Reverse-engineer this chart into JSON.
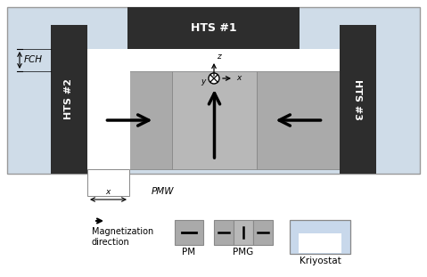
{
  "bg_color": "#cfdce8",
  "hts_dark": "#2d2d2d",
  "pmg_gray": "#aaaaaa",
  "pmg_mid": "#b8b8b8",
  "kriyostat_blue": "#c8d8eb",
  "white": "#ffffff",
  "fig_bg": "#ffffff",
  "title_hts1": "HTS #1",
  "title_hts2": "HTS #2",
  "title_hts3": "HTS #3",
  "label_fch": "FCH",
  "label_pmw": "PMW",
  "label_x_small": "x",
  "label_z": "z",
  "label_y": "y",
  "label_x": "x",
  "legend_mag": "Magnetization\ndirection",
  "legend_pm": "PM",
  "legend_pmg": "PMG",
  "legend_kriyostat": "Kriyostat"
}
